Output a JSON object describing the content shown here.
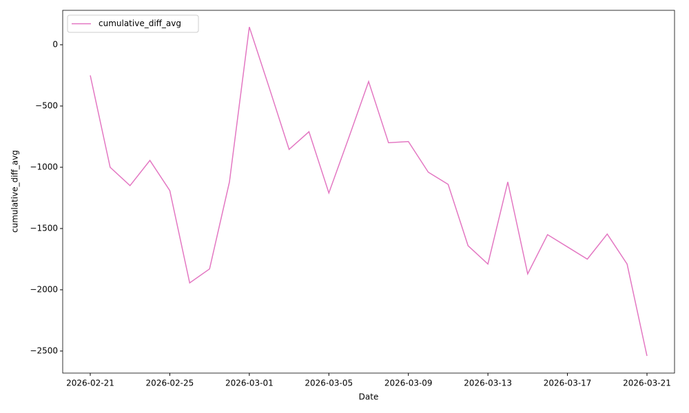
{
  "chart_data": {
    "type": "line",
    "xlabel": "Date",
    "ylabel": "cumulative_diff_avg",
    "x": [
      "2026-02-21",
      "2026-02-22",
      "2026-02-23",
      "2026-02-24",
      "2026-02-25",
      "2026-02-26",
      "2026-02-27",
      "2026-02-28",
      "2026-03-01",
      "2026-03-02",
      "2026-03-03",
      "2026-03-04",
      "2026-03-05",
      "2026-03-06",
      "2026-03-07",
      "2026-03-08",
      "2026-03-09",
      "2026-03-10",
      "2026-03-11",
      "2026-03-12",
      "2026-03-13",
      "2026-03-14",
      "2026-03-15",
      "2026-03-16",
      "2026-03-17",
      "2026-03-18",
      "2026-03-19",
      "2026-03-20",
      "2026-03-21"
    ],
    "series": [
      {
        "name": "cumulative_diff_avg",
        "color": "#e377c2",
        "values": [
          -250,
          -1000,
          -1150,
          -944,
          -1190,
          -1944,
          -1830,
          -1120,
          145,
          -350,
          -854,
          -710,
          -1210,
          -760,
          -300,
          -800,
          -790,
          -1040,
          -1140,
          -1640,
          -1790,
          -1120,
          -1870,
          -1550,
          -1650,
          -1750,
          -1545,
          -1790,
          -2540
        ]
      }
    ],
    "xlim": [
      "2026-02-19T14:44",
      "2026-03-22T09:16"
    ],
    "xticks": [
      "2026-02-21",
      "2026-02-25",
      "2026-03-01",
      "2026-03-05",
      "2026-03-09",
      "2026-03-13",
      "2026-03-17",
      "2026-03-21"
    ],
    "ylim": [
      -2680,
      281
    ],
    "yticks": [
      {
        "value": -2500,
        "label": "−2500"
      },
      {
        "value": -2000,
        "label": "−2000"
      },
      {
        "value": -1500,
        "label": "−1500"
      },
      {
        "value": -1000,
        "label": "−1000"
      },
      {
        "value": -500,
        "label": "−500"
      },
      0
    ],
    "legend": "upper left",
    "grid": false
  }
}
